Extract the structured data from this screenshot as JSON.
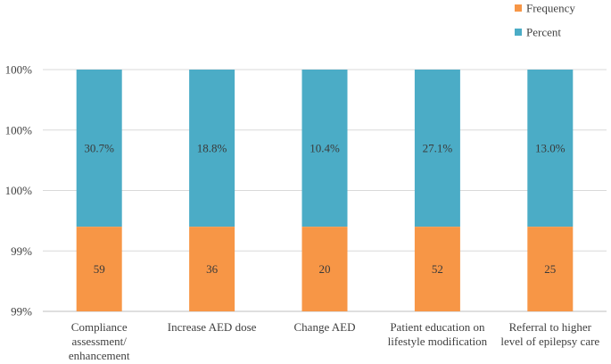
{
  "chart_data": {
    "type": "bar",
    "stacked": true,
    "title": "",
    "xlabel": "",
    "ylabel": "",
    "y_tick_labels": [
      "99%",
      "99%",
      "100%",
      "100%",
      "100%"
    ],
    "legend_position": "top-right",
    "categories": [
      [
        "Compliance",
        "assessment/",
        "enhancement"
      ],
      [
        "Increase AED dose"
      ],
      [
        "Change AED"
      ],
      [
        "Patient education on",
        "lifestyle modification"
      ],
      [
        "Referral to higher",
        "level of epilepsy care"
      ]
    ],
    "series": [
      {
        "name": "Frequency",
        "color": "#F79646",
        "values": [
          59,
          36,
          20,
          52,
          25
        ],
        "labels": [
          "59",
          "36",
          "20",
          "52",
          "25"
        ]
      },
      {
        "name": "Percent",
        "color": "#4BACC6",
        "values": [
          30.7,
          18.8,
          10.4,
          27.1,
          13.0
        ],
        "labels": [
          "30.7%",
          "18.8%",
          "10.4%",
          "27.1%",
          "13.0%"
        ]
      }
    ],
    "bottom_fraction": 0.35,
    "grid": true
  }
}
